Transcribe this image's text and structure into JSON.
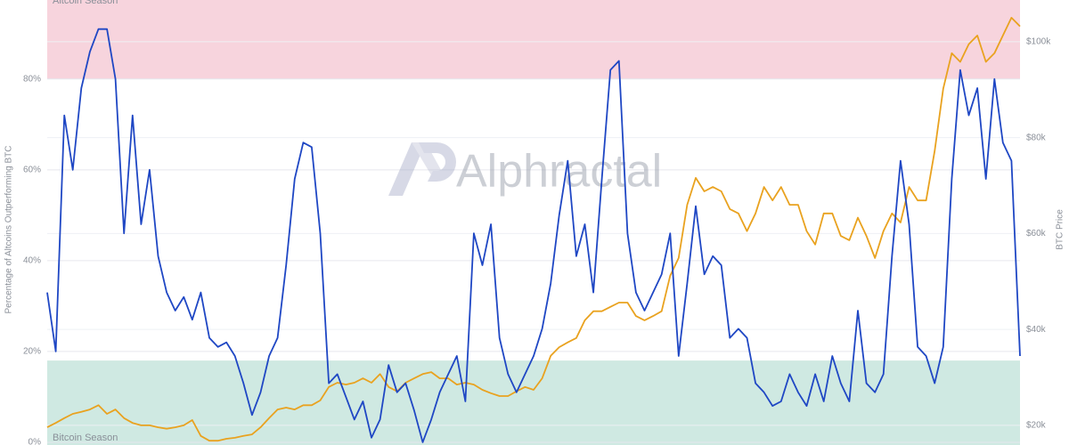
{
  "chart_data": {
    "type": "line",
    "y_axis_label": "Percentage of Altcoins Outperforming BTC",
    "y2_axis_label": "BTC Price",
    "watermark": "Alphractal",
    "ylim": [
      -0.6,
      97.4
    ],
    "yticks": [
      {
        "value": 0,
        "label": "0%"
      },
      {
        "value": 20,
        "label": "20%"
      },
      {
        "value": 40,
        "label": "40%"
      },
      {
        "value": 60,
        "label": "60%"
      },
      {
        "value": 80,
        "label": "80%"
      }
    ],
    "y2lim": [
      15900,
      108700
    ],
    "y2ticks": [
      {
        "value": 20000,
        "label": "$20k"
      },
      {
        "value": 40000,
        "label": "$40k"
      },
      {
        "value": 60000,
        "label": "$60k"
      },
      {
        "value": 80000,
        "label": "$80k"
      },
      {
        "value": 100000,
        "label": "$100k"
      }
    ],
    "grid": true,
    "bands": [
      {
        "label": "Altcoin Season",
        "from": 80,
        "color": "#f7d4dd"
      },
      {
        "label": "Bitcoin Season",
        "to": 18,
        "color": "#cfe9e2"
      }
    ],
    "categories": [
      null,
      null,
      null,
      null,
      null,
      null,
      null,
      null,
      null,
      null,
      null,
      null,
      null,
      null,
      null,
      null,
      null,
      null,
      null,
      null,
      null,
      null,
      null,
      null,
      null,
      null,
      null,
      null,
      null,
      null,
      null,
      null,
      null,
      null,
      null,
      null,
      null,
      null,
      null,
      null,
      null,
      null,
      null,
      null,
      null,
      null,
      null,
      null,
      null,
      null,
      null,
      null,
      null,
      null,
      null,
      null,
      null,
      null,
      null,
      null,
      null,
      null,
      null,
      null,
      null,
      null,
      null,
      null,
      null,
      null,
      null,
      null,
      null,
      null,
      null,
      null,
      null,
      null,
      null,
      null,
      null,
      null,
      null,
      null,
      null,
      null,
      null,
      null,
      null,
      null,
      null,
      null,
      null,
      null,
      null,
      null,
      null,
      null,
      null,
      null,
      null,
      null,
      null,
      null,
      null,
      null,
      null,
      null,
      null,
      null,
      null,
      null,
      null,
      null,
      null
    ],
    "series": [
      {
        "color": "#1f47c4",
        "values": [
          33,
          20,
          72,
          60,
          78,
          86,
          91,
          91,
          80,
          46,
          72,
          48,
          60,
          41,
          33,
          29,
          32,
          27,
          33,
          23,
          21,
          22,
          19,
          13,
          6,
          11,
          19,
          23,
          39,
          58,
          66,
          65,
          46,
          13,
          15,
          10,
          5,
          9,
          1,
          5,
          17,
          11,
          13,
          7,
          0,
          5,
          11,
          15,
          19,
          9,
          46,
          39,
          48,
          23,
          15,
          11,
          15,
          19,
          25,
          35,
          50,
          62,
          41,
          48,
          33,
          58,
          82,
          84,
          46,
          33,
          29,
          33,
          37,
          46,
          19,
          35,
          52,
          37,
          41,
          39,
          23,
          25,
          23,
          13,
          11,
          8,
          9,
          15,
          11,
          8,
          15,
          9,
          19,
          13,
          9,
          29,
          13,
          11,
          15,
          41,
          62,
          48,
          21,
          19,
          13,
          21,
          58,
          82,
          72,
          78,
          58,
          80,
          66,
          62,
          19
        ]
      },
      {
        "color": "#e9a21f",
        "axis": "y2",
        "values": [
          19600,
          20500,
          21500,
          22400,
          22800,
          23300,
          24200,
          22400,
          23300,
          21500,
          20500,
          20000,
          20000,
          19600,
          19300,
          19600,
          20000,
          21100,
          17800,
          16800,
          16800,
          17200,
          17400,
          17800,
          18100,
          19600,
          21500,
          23300,
          23700,
          23300,
          24200,
          24200,
          25200,
          28000,
          28900,
          28500,
          28900,
          29800,
          28900,
          30700,
          28000,
          27100,
          28900,
          29800,
          30700,
          31100,
          29800,
          29800,
          28500,
          28900,
          28500,
          27400,
          26700,
          26100,
          26100,
          27100,
          28000,
          27400,
          29800,
          34500,
          36300,
          37300,
          38200,
          41900,
          43800,
          43800,
          44700,
          45600,
          45600,
          42800,
          41900,
          42800,
          43800,
          51200,
          54900,
          66000,
          71600,
          68800,
          69700,
          68800,
          65100,
          64200,
          60500,
          64200,
          69700,
          66900,
          69700,
          66000,
          66000,
          60500,
          57700,
          64200,
          64200,
          59500,
          58600,
          63300,
          59500,
          54900,
          60500,
          64200,
          62300,
          69700,
          66900,
          66900,
          77200,
          90200,
          97600,
          95800,
          99500,
          101300,
          95800,
          97600,
          101300,
          105000,
          103200
        ]
      }
    ]
  }
}
